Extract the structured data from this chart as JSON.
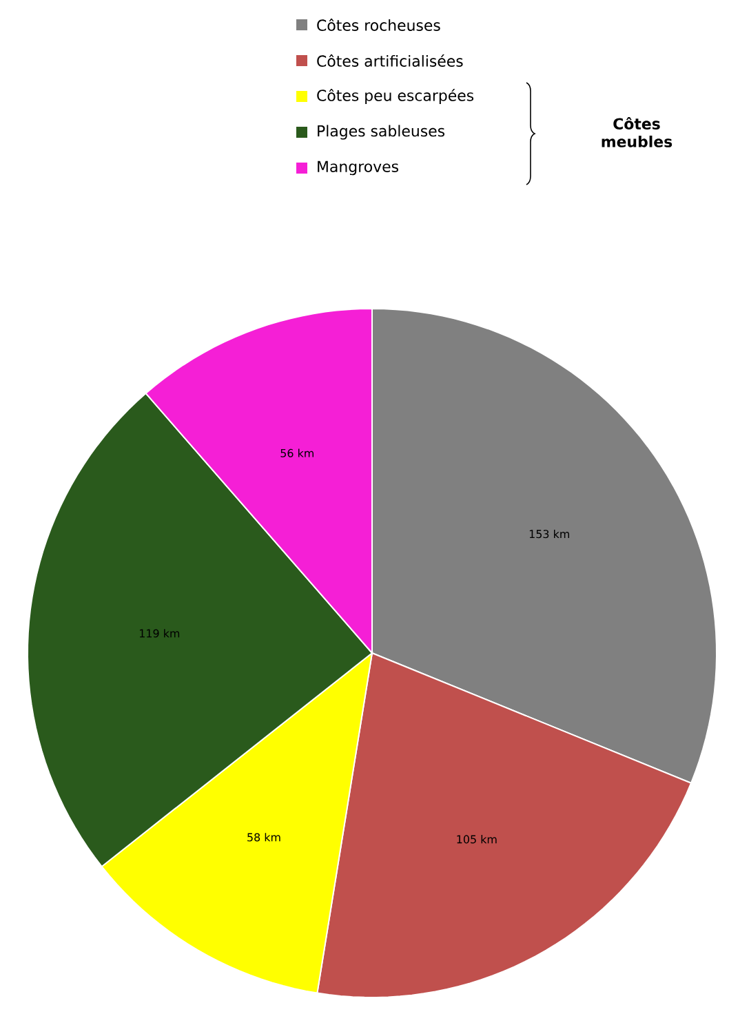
{
  "chart_data": {
    "type": "pie",
    "categories": [
      "Côtes rocheuses",
      "Côtes artificialisées",
      "Côtes peu escarpées",
      "Plages sableuses",
      "Mangroves"
    ],
    "values": [
      153,
      105,
      58,
      119,
      56
    ],
    "value_labels": [
      "153 km",
      "105 km",
      "58 km",
      "119 km",
      "56 km"
    ],
    "colors": [
      "#808080",
      "#c0504d",
      "#ffff00",
      "#2a5a1c",
      "#f51fd6"
    ],
    "legend": "top",
    "annotations": [
      "Côtes meubles"
    ]
  }
}
